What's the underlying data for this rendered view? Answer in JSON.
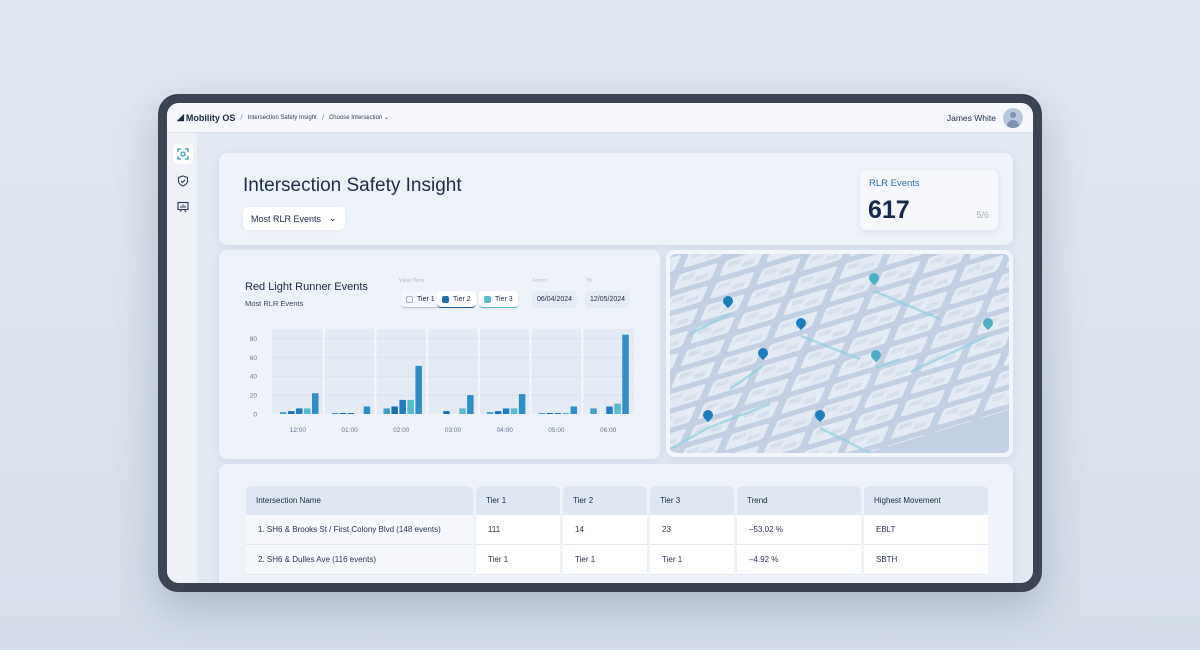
{
  "header": {
    "brand": "Mobility OS",
    "breadcrumbs": [
      "Intersection Safety Insight",
      "Choose Intersection"
    ],
    "user_name": "James White"
  },
  "sidebar": {
    "items": [
      {
        "icon": "scan-icon"
      },
      {
        "icon": "shield-check-icon"
      },
      {
        "icon": "presentation-chart-icon"
      }
    ]
  },
  "overview": {
    "title": "Intersection Safety Insight",
    "filter": "Most RLR Events",
    "kpi": {
      "label": "RLR Events",
      "value": "617",
      "sub": "5/6"
    }
  },
  "chart_panel": {
    "title": "Red Light Runner Events",
    "subtitle": "Most RLR Events",
    "view_tiers_label": "View Tiers:",
    "tiers": [
      {
        "label": "Tier 1",
        "checked": false
      },
      {
        "label": "Tier 2",
        "checked": true
      },
      {
        "label": "Tier 3",
        "checked": true
      }
    ],
    "from_label": "From:",
    "from": "06/04/2024",
    "to_label": "To:",
    "to": "12/05/2024"
  },
  "chart_data": {
    "type": "bar",
    "categories": [
      "12:00",
      "01:00",
      "02:00",
      "03:00",
      "04:00",
      "05:00",
      "06:00"
    ],
    "groups": [
      [
        2,
        3,
        6,
        6,
        22
      ],
      [
        1,
        1,
        1,
        0,
        8
      ],
      [
        6,
        8,
        15,
        15,
        51
      ],
      [
        0,
        3,
        0,
        6,
        20
      ],
      [
        2,
        3,
        6,
        6,
        21
      ],
      [
        1,
        1,
        1,
        1,
        8
      ],
      [
        6,
        0,
        8,
        11,
        84
      ]
    ],
    "bar_colors": [
      "#3fa0c8",
      "#1b6fae",
      "#1e7cc0",
      "#5ab9cf",
      "#2b8fc9"
    ],
    "yticks": [
      0,
      20,
      40,
      60,
      80
    ],
    "ylim": [
      0,
      90
    ],
    "grid": true
  },
  "map": {
    "pin_colors": [
      "#1a7fc1",
      "#4ab0c6"
    ]
  },
  "table": {
    "headers": [
      "Intersection Name",
      "Tier 1",
      "Tier 2",
      "Tier 3",
      "Trend",
      "Highest Movement"
    ],
    "rows": [
      [
        "1. SH6 & Brooks St / First Colony Blvd (148 events)",
        "111",
        "14",
        "23",
        "–53.02 %",
        "EBLT"
      ],
      [
        "2. SH6 & Dulles Ave (116 events)",
        "Tier 1",
        "Tier 1",
        "Tier 1",
        "–4.92 %",
        "SBTH"
      ]
    ]
  }
}
